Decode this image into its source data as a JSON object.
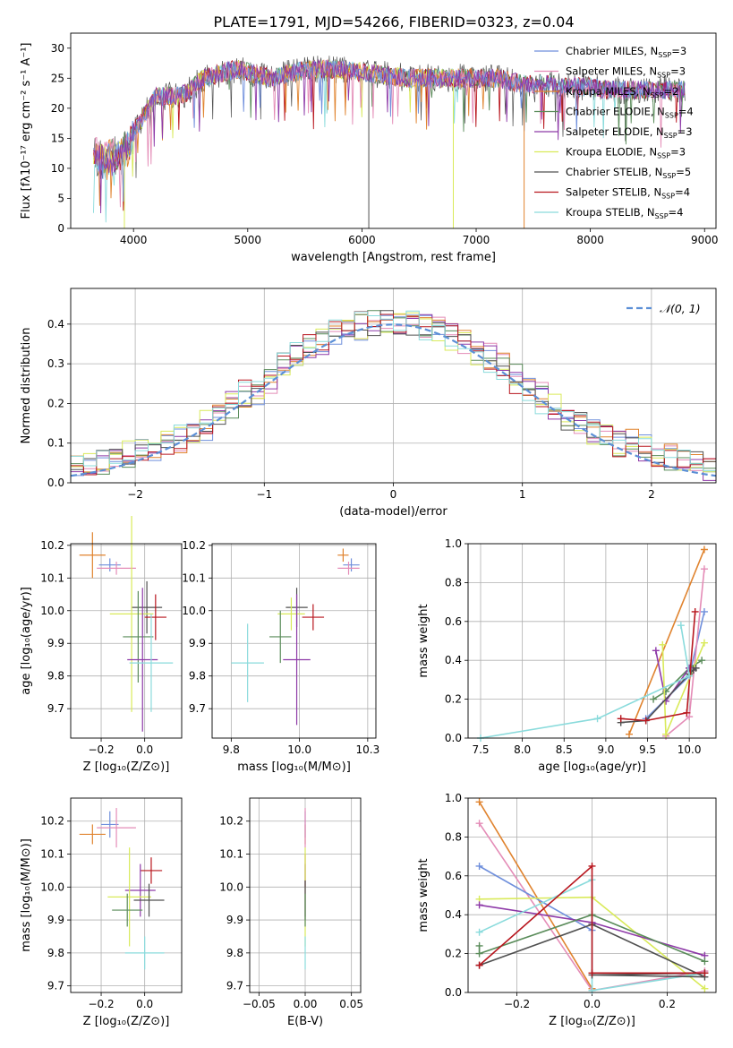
{
  "figure_title": "PLATE=1791, MJD=54266, FIBERID=0323, z=0.04",
  "series": [
    {
      "key": "cm",
      "name": "Chabrier MILES, N",
      "sub": "SSP",
      "tail": "=3",
      "color": "#6f8fdc"
    },
    {
      "key": "sm",
      "name": "Salpeter MILES, N",
      "sub": "SSP",
      "tail": "=3",
      "color": "#e48cb7"
    },
    {
      "key": "km",
      "name": "Kroupa MILES, N",
      "sub": "SSP",
      "tail": "=2",
      "color": "#e0832e"
    },
    {
      "key": "ce",
      "name": "Chabrier ELODIE, N",
      "sub": "SSP",
      "tail": "=4",
      "color": "#5a8c5a"
    },
    {
      "key": "se",
      "name": "Salpeter ELODIE, N",
      "sub": "SSP",
      "tail": "=3",
      "color": "#8e3aa8"
    },
    {
      "key": "ke",
      "name": "Kroupa ELODIE, N",
      "sub": "SSP",
      "tail": "=3",
      "color": "#d9ea5a"
    },
    {
      "key": "cs",
      "name": "Chabrier STELIB, N",
      "sub": "SSP",
      "tail": "=5",
      "color": "#505050"
    },
    {
      "key": "ss",
      "name": "Salpeter STELIB, N",
      "sub": "SSP",
      "tail": "=4",
      "color": "#b8161e"
    },
    {
      "key": "ks",
      "name": "Kroupa STELIB, N",
      "sub": "SSP",
      "tail": "=4",
      "color": "#8adbdc"
    }
  ],
  "chart_data": [
    {
      "id": "spectrum",
      "type": "line",
      "xlabel": "wavelength [Angstrom, rest frame]",
      "ylabel": "Flux [fλ10⁻¹⁷ erg cm⁻² s⁻¹ A⁻¹]",
      "xlim": [
        3450,
        9100
      ],
      "ylim": [
        0,
        32.5
      ],
      "xticks": [
        4000,
        5000,
        6000,
        7000,
        8000,
        9000
      ],
      "yticks": [
        0,
        5,
        10,
        15,
        20,
        25,
        30
      ],
      "grid": false,
      "legend": "top-right",
      "continuum": [
        [
          3650,
          13
        ],
        [
          3750,
          11
        ],
        [
          3850,
          12
        ],
        [
          3950,
          13
        ],
        [
          4000,
          16
        ],
        [
          4100,
          19
        ],
        [
          4200,
          22
        ],
        [
          4300,
          22
        ],
        [
          4400,
          22
        ],
        [
          4500,
          23
        ],
        [
          4600,
          25
        ],
        [
          4700,
          25.5
        ],
        [
          4800,
          26
        ],
        [
          4900,
          26.5
        ],
        [
          5000,
          26
        ],
        [
          5200,
          25
        ],
        [
          5400,
          26
        ],
        [
          5600,
          26.5
        ],
        [
          5800,
          26.5
        ],
        [
          6000,
          26
        ],
        [
          6200,
          25.5
        ],
        [
          6400,
          25
        ],
        [
          6600,
          25
        ],
        [
          6800,
          25
        ],
        [
          7000,
          25
        ],
        [
          7200,
          25
        ],
        [
          7400,
          24
        ],
        [
          7600,
          24
        ],
        [
          7800,
          23.5
        ],
        [
          8000,
          23.5
        ],
        [
          8200,
          23
        ],
        [
          8400,
          23
        ],
        [
          8600,
          23
        ],
        [
          8800,
          23
        ]
      ],
      "model_end": {
        "km": 7420,
        "ke": 6800,
        "sm": 8780,
        "ks": 8820
      },
      "dips": [
        {
          "x": 3920,
          "key": "ke",
          "to": 0
        },
        {
          "x": 6060,
          "key": "cs",
          "to": 0
        },
        {
          "x": 6800,
          "key": "ke",
          "to": 0
        },
        {
          "x": 7420,
          "key": "km",
          "to": 0
        }
      ]
    },
    {
      "id": "residual_hist",
      "type": "histogram",
      "xlabel": "(data-model)/error",
      "ylabel": "Normed distribution",
      "xlim": [
        -2.5,
        2.5
      ],
      "ylim": [
        0,
        0.49
      ],
      "xticks": [
        -2,
        -1,
        0,
        1,
        2
      ],
      "yticks": [
        0,
        0.1,
        0.2,
        0.3,
        0.4
      ],
      "grid": true,
      "legend": "top-right",
      "reference": "𝒩(0, 1)",
      "bin_width": 0.1
    },
    {
      "id": "age_vs_Z",
      "type": "errorbar",
      "xlabel": "Z [log₁₀(Z/Z⊙)]",
      "ylabel": "age  [log₁₀(age/yr)]",
      "xlim": [
        -0.34,
        0.17
      ],
      "ylim": [
        9.61,
        10.205
      ],
      "xticks": [
        -0.2,
        0.0
      ],
      "yticks": [
        9.7,
        9.8,
        9.9,
        10.0,
        10.1,
        10.2
      ],
      "grid": true,
      "points": [
        {
          "key": "km",
          "x": -0.24,
          "xerr": 0.06,
          "y": 10.17,
          "yerr": 0.07
        },
        {
          "key": "cm",
          "x": -0.16,
          "xerr": 0.05,
          "y": 10.14,
          "yerr": 0.02
        },
        {
          "key": "sm",
          "x": -0.13,
          "xerr": 0.09,
          "y": 10.13,
          "yerr": 0.02
        },
        {
          "key": "cs",
          "x": 0.01,
          "xerr": 0.07,
          "y": 10.01,
          "yerr": 0.08
        },
        {
          "key": "ke",
          "x": -0.06,
          "xerr": 0.1,
          "y": 9.99,
          "yerr": 0.3
        },
        {
          "key": "ss",
          "x": 0.05,
          "xerr": 0.05,
          "y": 9.98,
          "yerr": 0.07
        },
        {
          "key": "ce",
          "x": -0.03,
          "xerr": 0.07,
          "y": 9.92,
          "yerr": 0.14
        },
        {
          "key": "se",
          "x": -0.01,
          "xerr": 0.07,
          "y": 9.85,
          "yerr": 0.22
        },
        {
          "key": "ks",
          "x": 0.03,
          "xerr": 0.1,
          "y": 9.84,
          "yerr": 0.15
        }
      ]
    },
    {
      "id": "age_vs_mass",
      "type": "errorbar",
      "xlabel": "mass [log₁₀(M/M⊙)]",
      "ylabel": "",
      "xlim": [
        9.68,
        10.28
      ],
      "ylim": [
        9.61,
        10.205
      ],
      "xticks": [
        9.75,
        10.0,
        10.25
      ],
      "yticks": [
        9.7,
        9.8,
        9.9,
        10.0,
        10.1,
        10.2
      ],
      "grid": true,
      "points": [
        {
          "key": "km",
          "x": 10.16,
          "xerr": 0.02,
          "y": 10.17,
          "yerr": 0.02
        },
        {
          "key": "cm",
          "x": 10.19,
          "xerr": 0.03,
          "y": 10.14,
          "yerr": 0.02
        },
        {
          "key": "sm",
          "x": 10.18,
          "xerr": 0.04,
          "y": 10.13,
          "yerr": 0.02
        },
        {
          "key": "cs",
          "x": 9.99,
          "xerr": 0.04,
          "y": 10.01,
          "yerr": 0.06
        },
        {
          "key": "ke",
          "x": 9.97,
          "xerr": 0.05,
          "y": 9.99,
          "yerr": 0.05
        },
        {
          "key": "ss",
          "x": 10.05,
          "xerr": 0.04,
          "y": 9.98,
          "yerr": 0.04
        },
        {
          "key": "ce",
          "x": 9.93,
          "xerr": 0.04,
          "y": 9.92,
          "yerr": 0.08
        },
        {
          "key": "se",
          "x": 9.99,
          "xerr": 0.05,
          "y": 9.85,
          "yerr": 0.2
        },
        {
          "key": "ks",
          "x": 9.81,
          "xerr": 0.06,
          "y": 9.84,
          "yerr": 0.12
        }
      ]
    },
    {
      "id": "weight_vs_age",
      "type": "line",
      "xlabel": "age  [log₁₀(age/yr)]",
      "ylabel": "mass weight",
      "xlim": [
        7.35,
        10.32
      ],
      "ylim": [
        0,
        1.0
      ],
      "xticks": [
        7.5,
        8.0,
        8.5,
        9.0,
        9.5,
        10.0
      ],
      "yticks": [
        0.0,
        0.2,
        0.4,
        0.6,
        0.8,
        1.0
      ],
      "grid": true,
      "series": {
        "km": [
          [
            9.28,
            0.02
          ],
          [
            10.18,
            0.97
          ]
        ],
        "cm": [
          [
            9.48,
            0.1
          ],
          [
            10.0,
            0.32
          ],
          [
            10.18,
            0.65
          ]
        ],
        "sm": [
          [
            9.72,
            0.01
          ],
          [
            10.0,
            0.11
          ],
          [
            10.18,
            0.87
          ]
        ],
        "ce": [
          [
            9.57,
            0.2
          ],
          [
            9.72,
            0.24
          ],
          [
            10.0,
            0.36
          ],
          [
            10.15,
            0.4
          ]
        ],
        "se": [
          [
            9.6,
            0.45
          ],
          [
            9.72,
            0.19
          ],
          [
            10.0,
            0.36
          ]
        ],
        "ke": [
          [
            9.68,
            0.48
          ],
          [
            9.72,
            0.02
          ],
          [
            10.18,
            0.49
          ]
        ],
        "cs": [
          [
            9.18,
            0.08
          ],
          [
            9.48,
            0.09
          ],
          [
            10.0,
            0.33
          ],
          [
            10.05,
            0.35
          ],
          [
            10.08,
            0.36
          ]
        ],
        "ss": [
          [
            9.18,
            0.1
          ],
          [
            9.48,
            0.09
          ],
          [
            9.97,
            0.13
          ],
          [
            10.07,
            0.65
          ]
        ],
        "ks": [
          [
            7.5,
            0.0
          ],
          [
            8.9,
            0.1
          ],
          [
            10.0,
            0.32
          ],
          [
            9.9,
            0.58
          ]
        ]
      }
    },
    {
      "id": "mass_vs_Z",
      "type": "errorbar",
      "xlabel": "Z [log₁₀(Z/Z⊙)]",
      "ylabel": "mass [log₁₀(M/M⊙)]",
      "xlim": [
        -0.34,
        0.17
      ],
      "ylim": [
        9.68,
        10.27
      ],
      "xticks": [
        -0.2,
        0.0
      ],
      "yticks": [
        9.7,
        9.8,
        9.9,
        10.0,
        10.1,
        10.2
      ],
      "grid": true,
      "points": [
        {
          "key": "km",
          "x": -0.24,
          "xerr": 0.06,
          "y": 10.16,
          "yerr": 0.03
        },
        {
          "key": "cm",
          "x": -0.16,
          "xerr": 0.04,
          "y": 10.19,
          "yerr": 0.04
        },
        {
          "key": "sm",
          "x": -0.13,
          "xerr": 0.09,
          "y": 10.18,
          "yerr": 0.06
        },
        {
          "key": "ss",
          "x": 0.03,
          "xerr": 0.05,
          "y": 10.05,
          "yerr": 0.04
        },
        {
          "key": "se",
          "x": -0.02,
          "xerr": 0.07,
          "y": 9.99,
          "yerr": 0.08
        },
        {
          "key": "ke",
          "x": -0.07,
          "xerr": 0.1,
          "y": 9.97,
          "yerr": 0.15
        },
        {
          "key": "cs",
          "x": 0.02,
          "xerr": 0.07,
          "y": 9.96,
          "yerr": 0.05
        },
        {
          "key": "ce",
          "x": -0.08,
          "xerr": 0.07,
          "y": 9.93,
          "yerr": 0.05
        },
        {
          "key": "ks",
          "x": 0.0,
          "xerr": 0.09,
          "y": 9.8,
          "yerr": 0.05
        }
      ]
    },
    {
      "id": "mass_vs_ebv",
      "type": "errorbar",
      "xlabel": "E(B-V)",
      "ylabel": "",
      "xlim": [
        -0.06,
        0.06
      ],
      "ylim": [
        9.68,
        10.27
      ],
      "xticks": [
        -0.05,
        0.0,
        0.05
      ],
      "yticks": [
        9.7,
        9.8,
        9.9,
        10.0,
        10.1,
        10.2
      ],
      "grid": true,
      "points": [
        {
          "key": "km",
          "x": 0.0,
          "xerr": 0.0,
          "y": 10.16,
          "yerr": 0.03
        },
        {
          "key": "cm",
          "x": 0.0,
          "xerr": 0.0,
          "y": 10.19,
          "yerr": 0.04
        },
        {
          "key": "sm",
          "x": 0.0,
          "xerr": 0.0,
          "y": 10.18,
          "yerr": 0.06
        },
        {
          "key": "ss",
          "x": 0.0,
          "xerr": 0.0,
          "y": 10.05,
          "yerr": 0.05
        },
        {
          "key": "se",
          "x": 0.0,
          "xerr": 0.0,
          "y": 9.99,
          "yerr": 0.08
        },
        {
          "key": "ke",
          "x": 0.0,
          "xerr": 0.0,
          "y": 9.97,
          "yerr": 0.15
        },
        {
          "key": "cs",
          "x": 0.0,
          "xerr": 0.0,
          "y": 9.96,
          "yerr": 0.06
        },
        {
          "key": "ce",
          "x": 0.0,
          "xerr": 0.0,
          "y": 9.93,
          "yerr": 0.05
        },
        {
          "key": "ks",
          "x": 0.0,
          "xerr": 0.0,
          "y": 9.8,
          "yerr": 0.05
        }
      ]
    },
    {
      "id": "weight_vs_Z",
      "type": "line",
      "xlabel": "Z [log₁₀(Z/Z⊙)]",
      "ylabel": "mass weight",
      "xlim": [
        -0.33,
        0.33
      ],
      "ylim": [
        0,
        1.0
      ],
      "xticks": [
        -0.2,
        0.0,
        0.2
      ],
      "yticks": [
        0.0,
        0.2,
        0.4,
        0.6,
        0.8,
        1.0
      ],
      "grid": true,
      "series": {
        "km": [
          [
            -0.3,
            0.98
          ],
          [
            0.0,
            0.02
          ]
        ],
        "sm": [
          [
            -0.3,
            0.87
          ],
          [
            0.0,
            0.01
          ],
          [
            0.3,
            0.11
          ]
        ],
        "cm": [
          [
            -0.3,
            0.65
          ],
          [
            0.0,
            0.32
          ]
        ],
        "ke": [
          [
            -0.3,
            0.48
          ],
          [
            0.0,
            0.49
          ],
          [
            0.3,
            0.02
          ]
        ],
        "se": [
          [
            -0.3,
            0.45
          ],
          [
            0.0,
            0.36
          ],
          [
            0.3,
            0.19
          ]
        ],
        "ks": [
          [
            -0.3,
            0.31
          ],
          [
            0.0,
            0.58
          ],
          [
            0.0,
            0.01
          ],
          [
            0.3,
            0.1
          ]
        ],
        "ce": [
          [
            -0.3,
            0.24
          ],
          [
            -0.3,
            0.2
          ],
          [
            0.0,
            0.4
          ],
          [
            0.3,
            0.16
          ]
        ],
        "cs": [
          [
            -0.3,
            0.14
          ],
          [
            0.0,
            0.35
          ],
          [
            0.3,
            0.08
          ],
          [
            0.0,
            0.09
          ],
          [
            0.3,
            0.1
          ]
        ],
        "ss": [
          [
            -0.3,
            0.14
          ],
          [
            0.0,
            0.65
          ],
          [
            0.0,
            0.1
          ],
          [
            0.3,
            0.1
          ]
        ]
      }
    }
  ]
}
